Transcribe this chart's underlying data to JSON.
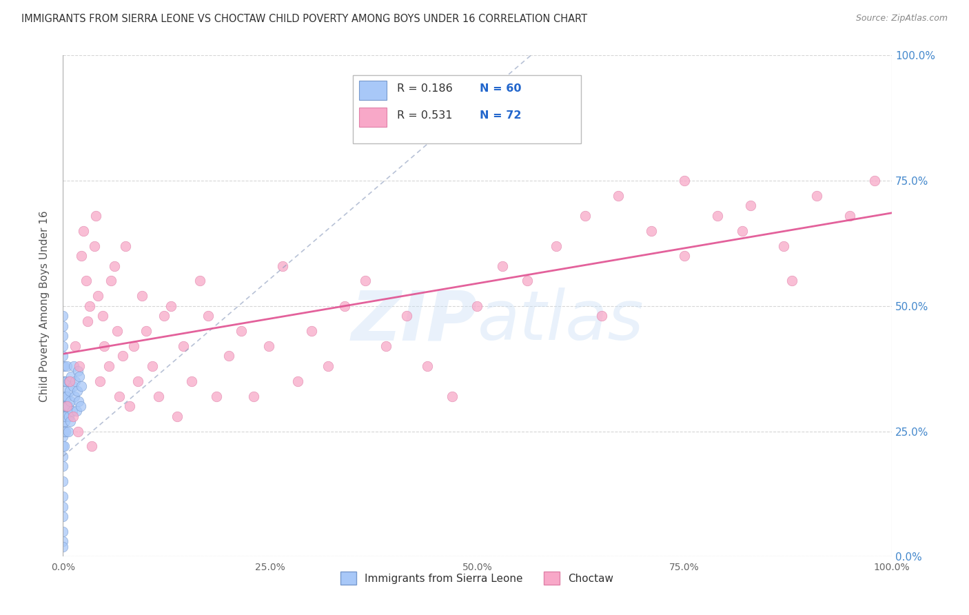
{
  "title": "IMMIGRANTS FROM SIERRA LEONE VS CHOCTAW CHILD POVERTY AMONG BOYS UNDER 16 CORRELATION CHART",
  "source": "Source: ZipAtlas.com",
  "ylabel": "Child Poverty Among Boys Under 16",
  "watermark_text": "ZIPAtlas",
  "legend_label1": "Immigrants from Sierra Leone",
  "legend_label2": "Choctaw",
  "R_sierra": 0.186,
  "N_sierra": 60,
  "R_choctaw": 0.531,
  "N_choctaw": 72,
  "color_sierra": "#a8c8f8",
  "color_choctaw": "#f8a8c8",
  "edge_sierra": "#7799cc",
  "edge_choctaw": "#e080a8",
  "line_sierra_color": "#8899bb",
  "line_choctaw_color": "#e05090",
  "background_color": "#ffffff",
  "grid_color": "#cccccc",
  "title_color": "#333333",
  "source_color": "#888888",
  "axis_label_color": "#555555",
  "right_tick_color": "#4488cc",
  "xlim": [
    0.0,
    1.0
  ],
  "ylim": [
    0.0,
    1.0
  ],
  "yticks": [
    0.0,
    0.25,
    0.5,
    0.75,
    1.0
  ],
  "ytick_labels_right": [
    "0.0%",
    "25.0%",
    "50.0%",
    "75.0%",
    "100.0%"
  ],
  "xticks": [
    0.0,
    0.25,
    0.5,
    0.75,
    1.0
  ],
  "xtick_labels": [
    "0.0%",
    "25.0%",
    "50.0%",
    "75.0%",
    "100.0%"
  ],
  "choctaw_x": [
    0.005,
    0.008,
    0.012,
    0.015,
    0.018,
    0.02,
    0.022,
    0.025,
    0.028,
    0.03,
    0.032,
    0.035,
    0.038,
    0.04,
    0.042,
    0.045,
    0.048,
    0.05,
    0.055,
    0.058,
    0.062,
    0.065,
    0.068,
    0.072,
    0.075,
    0.08,
    0.085,
    0.09,
    0.095,
    0.1,
    0.108,
    0.115,
    0.122,
    0.13,
    0.138,
    0.145,
    0.155,
    0.165,
    0.175,
    0.185,
    0.2,
    0.215,
    0.23,
    0.248,
    0.265,
    0.283,
    0.3,
    0.32,
    0.34,
    0.365,
    0.39,
    0.415,
    0.44,
    0.47,
    0.5,
    0.53,
    0.56,
    0.595,
    0.63,
    0.67,
    0.71,
    0.75,
    0.79,
    0.83,
    0.87,
    0.91,
    0.95,
    0.98,
    0.75,
    0.82,
    0.88,
    0.65
  ],
  "choctaw_y": [
    0.3,
    0.35,
    0.28,
    0.42,
    0.25,
    0.38,
    0.6,
    0.65,
    0.55,
    0.47,
    0.5,
    0.22,
    0.62,
    0.68,
    0.52,
    0.35,
    0.48,
    0.42,
    0.38,
    0.55,
    0.58,
    0.45,
    0.32,
    0.4,
    0.62,
    0.3,
    0.42,
    0.35,
    0.52,
    0.45,
    0.38,
    0.32,
    0.48,
    0.5,
    0.28,
    0.42,
    0.35,
    0.55,
    0.48,
    0.32,
    0.4,
    0.45,
    0.32,
    0.42,
    0.58,
    0.35,
    0.45,
    0.38,
    0.5,
    0.55,
    0.42,
    0.48,
    0.38,
    0.32,
    0.5,
    0.58,
    0.55,
    0.62,
    0.68,
    0.72,
    0.65,
    0.75,
    0.68,
    0.7,
    0.62,
    0.72,
    0.68,
    0.75,
    0.6,
    0.65,
    0.55,
    0.48
  ],
  "sierra_x": [
    0.0,
    0.0,
    0.0,
    0.0,
    0.0,
    0.0,
    0.0,
    0.0,
    0.0,
    0.0,
    0.0,
    0.0,
    0.0,
    0.0,
    0.0,
    0.0,
    0.0,
    0.0,
    0.0,
    0.0,
    0.0,
    0.0,
    0.001,
    0.001,
    0.001,
    0.001,
    0.001,
    0.001,
    0.001,
    0.002,
    0.002,
    0.002,
    0.002,
    0.003,
    0.003,
    0.003,
    0.004,
    0.004,
    0.005,
    0.005,
    0.006,
    0.006,
    0.007,
    0.007,
    0.008,
    0.009,
    0.009,
    0.01,
    0.011,
    0.012,
    0.013,
    0.014,
    0.015,
    0.016,
    0.017,
    0.018,
    0.019,
    0.02,
    0.021,
    0.022
  ],
  "sierra_y": [
    0.38,
    0.35,
    0.32,
    0.3,
    0.28,
    0.26,
    0.24,
    0.22,
    0.2,
    0.18,
    0.15,
    0.12,
    0.1,
    0.08,
    0.05,
    0.03,
    0.02,
    0.4,
    0.42,
    0.44,
    0.46,
    0.48,
    0.3,
    0.32,
    0.35,
    0.38,
    0.25,
    0.28,
    0.22,
    0.33,
    0.3,
    0.27,
    0.35,
    0.28,
    0.32,
    0.25,
    0.35,
    0.3,
    0.32,
    0.38,
    0.25,
    0.3,
    0.35,
    0.28,
    0.33,
    0.27,
    0.31,
    0.36,
    0.29,
    0.34,
    0.38,
    0.32,
    0.35,
    0.29,
    0.33,
    0.37,
    0.31,
    0.36,
    0.3,
    0.34
  ]
}
